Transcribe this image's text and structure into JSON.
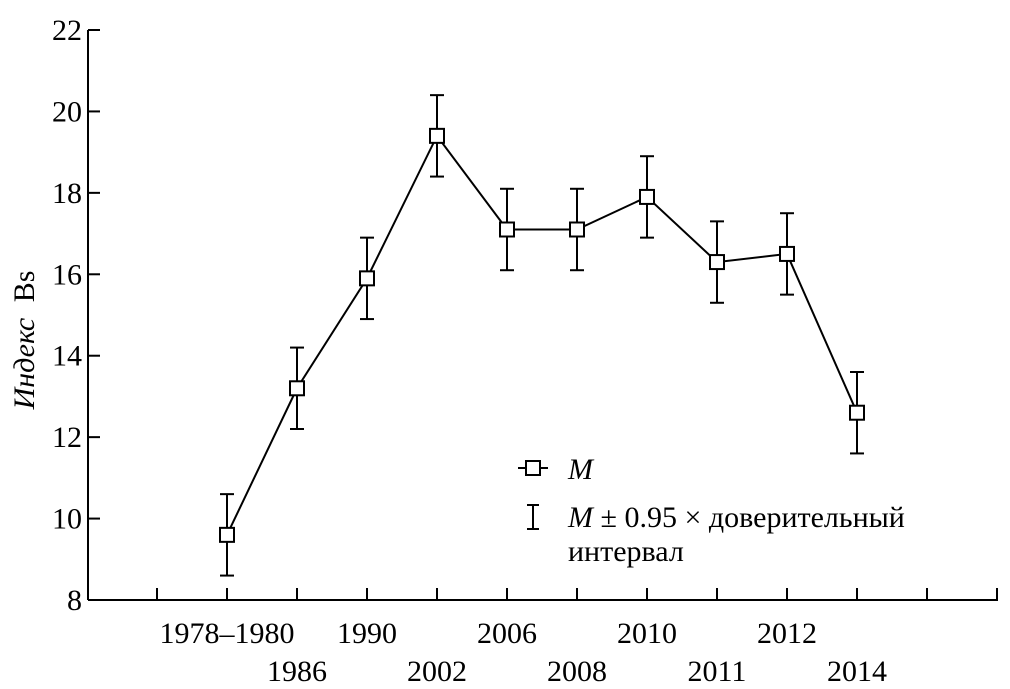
{
  "chart_data": {
    "type": "line",
    "ylabel_prefix": "Индекс",
    "ylabel_suffix": "Bs",
    "ylim": [
      8,
      22
    ],
    "yticks": [
      8,
      10,
      12,
      14,
      16,
      18,
      20,
      22
    ],
    "x_tick_labels": [
      {
        "label": "1978–1980",
        "row": 0
      },
      {
        "label": "1986",
        "row": 1
      },
      {
        "label": "1990",
        "row": 0
      },
      {
        "label": "2002",
        "row": 1
      },
      {
        "label": "2006",
        "row": 0
      },
      {
        "label": "2008",
        "row": 1
      },
      {
        "label": "2010",
        "row": 0
      },
      {
        "label": "2011",
        "row": 1
      },
      {
        "label": "2012",
        "row": 0
      },
      {
        "label": "2014",
        "row": 1
      }
    ],
    "series": [
      {
        "name": "M",
        "values": [
          9.6,
          13.2,
          15.9,
          19.4,
          17.1,
          17.1,
          17.9,
          16.3,
          16.5,
          12.6
        ],
        "ci_low": [
          8.6,
          12.2,
          14.9,
          18.4,
          16.1,
          16.1,
          16.9,
          15.3,
          15.5,
          11.6
        ],
        "ci_high": [
          10.6,
          14.2,
          16.9,
          20.4,
          18.1,
          18.1,
          18.9,
          17.3,
          17.5,
          13.6
        ]
      }
    ],
    "grid": false,
    "legend": {
      "placement": "bottom-right",
      "entries": [
        {
          "label": "M"
        },
        {
          "label_italic": "M",
          "label_rest": " ± 0.95 × доверительный",
          "label_line2": "интервал"
        }
      ]
    }
  }
}
